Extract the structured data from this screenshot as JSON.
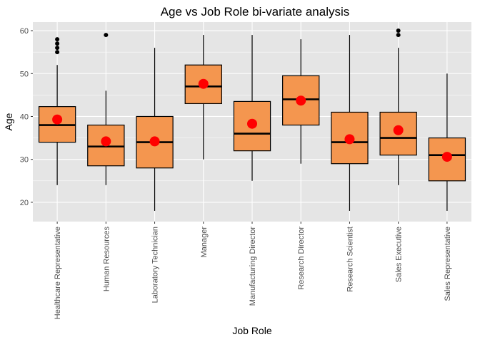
{
  "chart_data": {
    "type": "box",
    "title": "Age vs Job Role bi-variate analysis",
    "xlabel": "Job Role",
    "ylabel": "Age",
    "ylim": [
      15.5,
      62
    ],
    "yticks": [
      20,
      30,
      40,
      50,
      60
    ],
    "grid": true,
    "legend": "none",
    "colors": {
      "panel": "#e5e5e5",
      "grid_major": "#ffffff",
      "box_fill": "#f4964f",
      "box_stroke": "#000000",
      "mean_point": "#ff0000",
      "outlier": "#000000"
    },
    "categories": [
      "Healthcare Representative",
      "Human Resources",
      "Laboratory Technician",
      "Manager",
      "Manufacturing Director",
      "Research Director",
      "Research Scientist",
      "Sales Executive",
      "Sales Representative"
    ],
    "boxes": [
      {
        "min": 24,
        "q1": 34,
        "median": 38,
        "q3": 42.3,
        "max": 52,
        "mean": 39.3,
        "outliers": [
          55,
          56,
          57,
          58
        ]
      },
      {
        "min": 24,
        "q1": 28.5,
        "median": 33,
        "q3": 38,
        "max": 46,
        "mean": 34.2,
        "outliers": [
          59
        ]
      },
      {
        "min": 18,
        "q1": 28,
        "median": 34,
        "q3": 40,
        "max": 56,
        "mean": 34.2,
        "outliers": []
      },
      {
        "min": 30,
        "q1": 43,
        "median": 47,
        "q3": 52,
        "max": 59,
        "mean": 47.6,
        "outliers": []
      },
      {
        "min": 25,
        "q1": 32,
        "median": 36,
        "q3": 43.5,
        "max": 59,
        "mean": 38.3,
        "outliers": []
      },
      {
        "min": 29,
        "q1": 38,
        "median": 44,
        "q3": 49.5,
        "max": 58,
        "mean": 43.7,
        "outliers": []
      },
      {
        "min": 18,
        "q1": 29,
        "median": 34,
        "q3": 41,
        "max": 59,
        "mean": 34.7,
        "outliers": []
      },
      {
        "min": 24,
        "q1": 31,
        "median": 35,
        "q3": 41,
        "max": 56,
        "mean": 36.8,
        "outliers": [
          59,
          60
        ]
      },
      {
        "min": 18,
        "q1": 25,
        "median": 31,
        "q3": 35,
        "max": 50,
        "mean": 30.6,
        "outliers": []
      }
    ]
  }
}
